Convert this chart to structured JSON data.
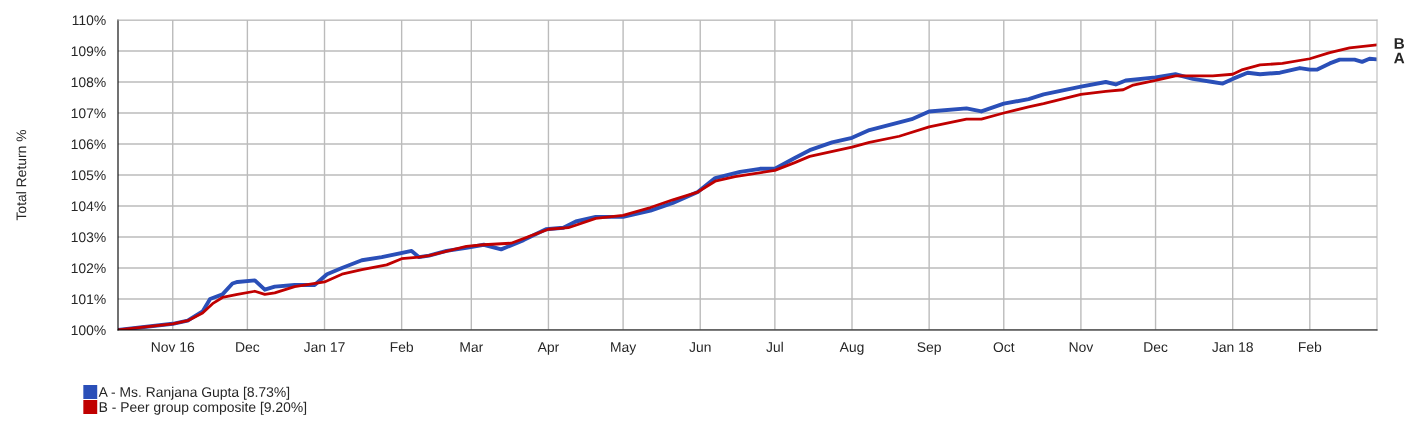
{
  "chart_data": {
    "type": "line",
    "ylabel": "Total Return %",
    "xlim": [
      "2016-10-10",
      "2018-02-28"
    ],
    "xticks": [
      {
        "value": "2016-11-01",
        "label": "Nov 16"
      },
      {
        "value": "2016-12-01",
        "label": "Dec"
      },
      {
        "value": "2017-01-01",
        "label": "Jan 17"
      },
      {
        "value": "2017-02-01",
        "label": "Feb"
      },
      {
        "value": "2017-03-01",
        "label": "Mar"
      },
      {
        "value": "2017-04-01",
        "label": "Apr"
      },
      {
        "value": "2017-05-01",
        "label": "May"
      },
      {
        "value": "2017-06-01",
        "label": "Jun"
      },
      {
        "value": "2017-07-01",
        "label": "Jul"
      },
      {
        "value": "2017-08-01",
        "label": "Aug"
      },
      {
        "value": "2017-09-01",
        "label": "Sep"
      },
      {
        "value": "2017-10-01",
        "label": "Oct"
      },
      {
        "value": "2017-11-01",
        "label": "Nov"
      },
      {
        "value": "2017-12-01",
        "label": "Dec"
      },
      {
        "value": "2018-01-01",
        "label": "Jan 18"
      },
      {
        "value": "2018-02-01",
        "label": "Feb"
      }
    ],
    "ylim": [
      100,
      110
    ],
    "yticks": [
      {
        "value": 100,
        "label": "100%"
      },
      {
        "value": 101,
        "label": "101%"
      },
      {
        "value": 102,
        "label": "102%"
      },
      {
        "value": 103,
        "label": "103%"
      },
      {
        "value": 104,
        "label": "104%"
      },
      {
        "value": 105,
        "label": "105%"
      },
      {
        "value": 106,
        "label": "106%"
      },
      {
        "value": 107,
        "label": "107%"
      },
      {
        "value": 108,
        "label": "108%"
      },
      {
        "value": 109,
        "label": "109%"
      },
      {
        "value": 110,
        "label": "110%"
      }
    ],
    "grid": true,
    "legend": "bottom",
    "marker": "none",
    "line_style": "solid",
    "annotations": [
      {
        "text": "B",
        "x": "2018-02-28",
        "y": 109.2
      },
      {
        "text": "A",
        "x": "2018-02-28",
        "y": 108.73
      }
    ],
    "series": [
      {
        "name": "A - Ms. Ranjana Gupta [8.73%]",
        "color": "#2a4fb8",
        "x": [
          "2016-10-10",
          "2016-11-01",
          "2016-11-07",
          "2016-11-13",
          "2016-11-16",
          "2016-11-21",
          "2016-11-25",
          "2016-11-27",
          "2016-12-04",
          "2016-12-08",
          "2016-12-12",
          "2016-12-20",
          "2016-12-28",
          "2017-01-02",
          "2017-01-08",
          "2017-01-16",
          "2017-01-24",
          "2017-02-05",
          "2017-02-08",
          "2017-02-12",
          "2017-02-19",
          "2017-02-27",
          "2017-03-06",
          "2017-03-13",
          "2017-03-22",
          "2017-03-31",
          "2017-04-07",
          "2017-04-12",
          "2017-04-20",
          "2017-05-01",
          "2017-05-12",
          "2017-05-21",
          "2017-05-31",
          "2017-06-07",
          "2017-06-17",
          "2017-06-25",
          "2017-07-01",
          "2017-07-09",
          "2017-07-15",
          "2017-07-24",
          "2017-08-01",
          "2017-08-08",
          "2017-08-20",
          "2017-08-25",
          "2017-09-01",
          "2017-09-16",
          "2017-09-22",
          "2017-10-01",
          "2017-10-11",
          "2017-10-17",
          "2017-11-01",
          "2017-11-11",
          "2017-11-15",
          "2017-11-19",
          "2017-12-01",
          "2017-12-09",
          "2017-12-16",
          "2017-12-24",
          "2017-12-28",
          "2018-01-01",
          "2018-01-07",
          "2018-01-12",
          "2018-01-20",
          "2018-01-28",
          "2018-02-01",
          "2018-02-04",
          "2018-02-09",
          "2018-02-13",
          "2018-02-19",
          "2018-02-22",
          "2018-02-25",
          "2018-02-28"
        ],
        "values": [
          100,
          100.2,
          100.3,
          100.6,
          101.0,
          101.15,
          101.5,
          101.55,
          101.6,
          101.3,
          101.4,
          101.45,
          101.45,
          101.8,
          102.0,
          102.25,
          102.35,
          102.55,
          102.35,
          102.4,
          102.55,
          102.65,
          102.75,
          102.6,
          102.9,
          103.25,
          103.3,
          103.5,
          103.65,
          103.65,
          103.85,
          104.1,
          104.45,
          104.9,
          105.1,
          105.2,
          105.2,
          105.55,
          105.8,
          106.05,
          106.2,
          106.45,
          106.7,
          106.8,
          107.05,
          107.15,
          107.05,
          107.3,
          107.45,
          107.6,
          107.85,
          108.0,
          107.92,
          108.05,
          108.15,
          108.25,
          108.1,
          108.0,
          107.95,
          108.1,
          108.3,
          108.25,
          108.3,
          108.45,
          108.4,
          108.4,
          108.6,
          108.72,
          108.72,
          108.65,
          108.75,
          108.73
        ]
      },
      {
        "name": "B - Peer group composite [9.20%]",
        "color": "#c00000",
        "x": [
          "2016-10-10",
          "2016-11-01",
          "2016-11-07",
          "2016-11-13",
          "2016-11-17",
          "2016-11-21",
          "2016-11-27",
          "2016-12-04",
          "2016-12-08",
          "2016-12-12",
          "2016-12-20",
          "2017-01-01",
          "2017-01-08",
          "2017-01-16",
          "2017-01-26",
          "2017-02-01",
          "2017-02-08",
          "2017-02-12",
          "2017-02-27",
          "2017-03-06",
          "2017-03-17",
          "2017-03-27",
          "2017-04-01",
          "2017-04-09",
          "2017-04-20",
          "2017-05-01",
          "2017-05-12",
          "2017-05-21",
          "2017-05-31",
          "2017-06-07",
          "2017-06-15",
          "2017-07-01",
          "2017-07-09",
          "2017-07-15",
          "2017-08-01",
          "2017-08-08",
          "2017-08-20",
          "2017-09-01",
          "2017-09-16",
          "2017-09-22",
          "2017-10-01",
          "2017-10-11",
          "2017-10-17",
          "2017-11-01",
          "2017-11-11",
          "2017-11-18",
          "2017-11-22",
          "2017-12-01",
          "2017-12-09",
          "2017-12-18",
          "2017-12-24",
          "2018-01-01",
          "2018-01-05",
          "2018-01-12",
          "2018-01-21",
          "2018-02-01",
          "2018-02-09",
          "2018-02-17",
          "2018-02-28"
        ],
        "values": [
          100,
          100.2,
          100.3,
          100.55,
          100.85,
          101.05,
          101.15,
          101.25,
          101.15,
          101.2,
          101.4,
          101.55,
          101.8,
          101.95,
          102.1,
          102.3,
          102.35,
          102.4,
          102.7,
          102.75,
          102.8,
          103.1,
          103.25,
          103.3,
          103.6,
          103.7,
          103.95,
          104.2,
          104.45,
          104.8,
          104.95,
          105.15,
          105.4,
          105.6,
          105.9,
          106.05,
          106.25,
          106.55,
          106.8,
          106.8,
          107.0,
          107.2,
          107.3,
          107.6,
          107.7,
          107.75,
          107.9,
          108.05,
          108.2,
          108.2,
          108.2,
          108.25,
          108.4,
          108.55,
          108.6,
          108.75,
          108.95,
          109.1,
          109.2
        ]
      }
    ]
  }
}
